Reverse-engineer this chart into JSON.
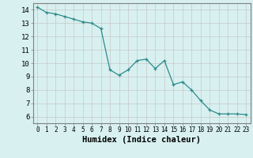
{
  "x": [
    0,
    1,
    2,
    3,
    4,
    5,
    6,
    7,
    8,
    9,
    10,
    11,
    12,
    13,
    14,
    15,
    16,
    17,
    18,
    19,
    20,
    21,
    22,
    23
  ],
  "y": [
    14.2,
    13.8,
    13.7,
    13.5,
    13.3,
    13.1,
    13.0,
    12.6,
    9.5,
    9.1,
    9.5,
    10.2,
    10.3,
    9.6,
    10.2,
    8.4,
    8.6,
    8.0,
    7.2,
    6.5,
    6.2,
    6.2,
    6.2,
    6.15
  ],
  "xlim": [
    -0.5,
    23.5
  ],
  "ylim": [
    5.5,
    14.5
  ],
  "yticks": [
    6,
    7,
    8,
    9,
    10,
    11,
    12,
    13,
    14
  ],
  "xticks": [
    0,
    1,
    2,
    3,
    4,
    5,
    6,
    7,
    8,
    9,
    10,
    11,
    12,
    13,
    14,
    15,
    16,
    17,
    18,
    19,
    20,
    21,
    22,
    23
  ],
  "xlabel": "Humidex (Indice chaleur)",
  "line_color": "#2e8b8b",
  "marker": "+",
  "bg_color": "#d8f0f0",
  "grid_color": "#c8c8c8",
  "spine_color": "#808080",
  "xlabel_fontsize": 7.5,
  "tick_fontsize": 5.5,
  "ytick_fontsize": 6.5
}
